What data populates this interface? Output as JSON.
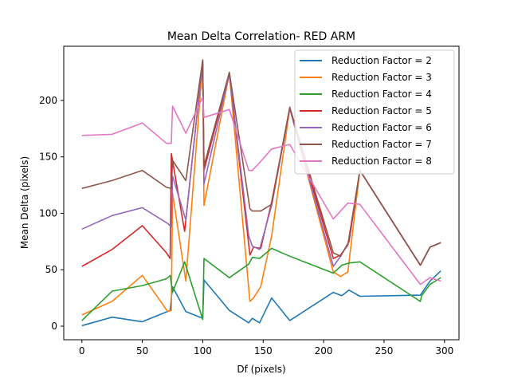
{
  "chart_data": {
    "type": "line",
    "title": "Mean Delta Correlation- RED ARM",
    "xlabel": "Df (pixels)",
    "ylabel": "Mean Delta (pixels)",
    "xlim": [
      -15,
      312
    ],
    "ylim": [
      -12,
      248
    ],
    "xticks": [
      0,
      50,
      100,
      150,
      200,
      250,
      300
    ],
    "yticks": [
      0,
      50,
      100,
      150,
      200
    ],
    "grid": false,
    "legend_position": "top-right",
    "series": [
      {
        "name": "Reduction Factor = 2",
        "color": "#1f77b4",
        "x": [
          0,
          25,
          50,
          73,
          75,
          86,
          100,
          101,
          122,
          138,
          141,
          147,
          157,
          172,
          208,
          215,
          221,
          230,
          280,
          288,
          297
        ],
        "y": [
          0.5,
          8,
          4,
          14,
          35,
          13,
          7,
          41,
          14,
          3,
          7,
          3,
          25,
          5,
          30,
          27,
          32,
          26.5,
          27.5,
          40,
          49
        ]
      },
      {
        "name": "Reduction Factor = 3",
        "color": "#ff7f0e",
        "x": [
          0,
          25,
          50,
          71,
          74,
          75,
          86,
          100,
          101,
          122,
          139,
          142,
          148,
          157,
          172,
          208,
          214,
          220,
          230,
          280,
          288,
          297
        ],
        "y": [
          10,
          22,
          45,
          13,
          14,
          118,
          40,
          233,
          107,
          224,
          22,
          25,
          35,
          80,
          193,
          48,
          44,
          48,
          138,
          54,
          70,
          74
        ]
      },
      {
        "name": "Reduction Factor = 4",
        "color": "#2ca02c",
        "x": [
          0,
          25,
          50,
          70,
          73,
          75,
          85,
          100,
          101,
          122,
          138,
          141,
          147,
          157,
          172,
          208,
          215,
          221,
          230,
          280,
          281,
          288,
          297
        ],
        "y": [
          5,
          31,
          36,
          42,
          45,
          30,
          57,
          6,
          60,
          43,
          55,
          61,
          60,
          69,
          62,
          47,
          54,
          56,
          57,
          22,
          27,
          37,
          43
        ]
      },
      {
        "name": "Reduction Factor = 5",
        "color": "#d62728",
        "x": [
          0,
          25,
          50,
          70,
          73,
          74,
          85,
          100,
          101,
          122,
          139,
          142,
          148,
          157,
          172,
          208,
          214,
          220,
          230,
          280,
          288,
          297
        ],
        "y": [
          53,
          68,
          89,
          65,
          60,
          153,
          84,
          235,
          138,
          224,
          63,
          70,
          69,
          110,
          193,
          60,
          63,
          72,
          138,
          54,
          70,
          74
        ]
      },
      {
        "name": "Reduction Factor = 6",
        "color": "#9467bd",
        "x": [
          0,
          25,
          50,
          71,
          74,
          75,
          86,
          100,
          101,
          122,
          138,
          141,
          147,
          157,
          172,
          208,
          214,
          221,
          230,
          280,
          288,
          297
        ],
        "y": [
          86,
          98,
          105,
          91,
          88,
          133,
          94,
          235,
          126,
          224,
          80,
          71,
          68,
          107,
          193,
          53,
          62,
          75,
          138,
          54,
          70,
          74
        ]
      },
      {
        "name": "Reduction Factor = 7",
        "color": "#8c564b",
        "x": [
          0,
          25,
          50,
          70,
          74,
          75,
          86,
          100,
          101,
          122,
          139,
          141,
          148,
          157,
          172,
          208,
          214,
          221,
          230,
          280,
          288,
          297
        ],
        "y": [
          122,
          129,
          138,
          123,
          122,
          147,
          129,
          236,
          142,
          225,
          104,
          102,
          102,
          108,
          194,
          65,
          62,
          75,
          138,
          54,
          70,
          74
        ]
      },
      {
        "name": "Reduction Factor = 8",
        "color": "#e377c2",
        "x": [
          0,
          25,
          50,
          70,
          74,
          75,
          86,
          100,
          101,
          122,
          138,
          141,
          148,
          157,
          172,
          208,
          214,
          220,
          230,
          280,
          288,
          297
        ],
        "y": [
          169,
          170,
          180,
          162,
          162,
          195,
          171,
          203,
          185,
          192,
          138,
          138,
          146,
          157,
          161,
          95,
          102,
          109,
          108,
          37,
          43,
          40
        ]
      }
    ]
  }
}
